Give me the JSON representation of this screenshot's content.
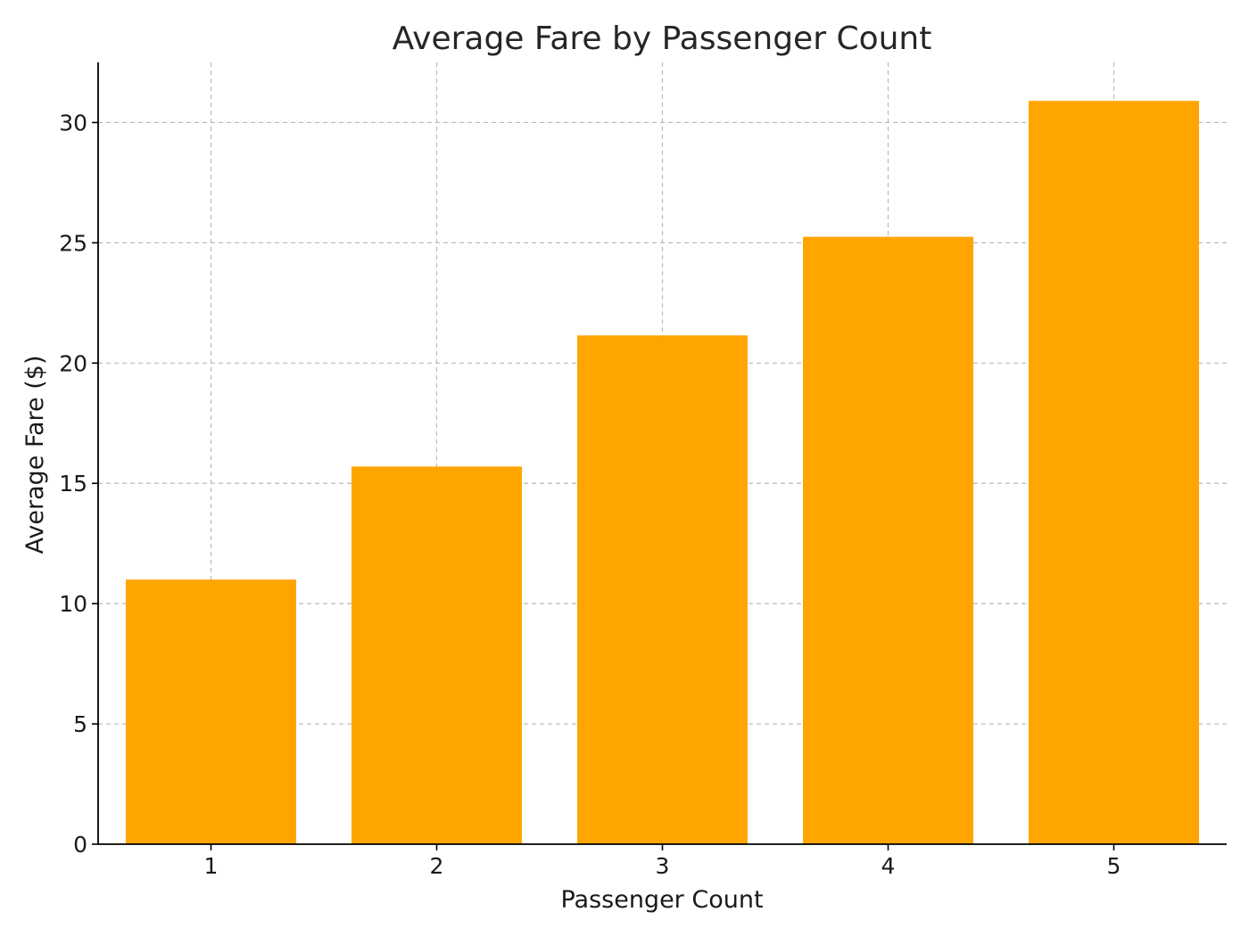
{
  "chart_data": {
    "type": "bar",
    "title": "Average Fare by Passenger Count",
    "xlabel": "Passenger Count",
    "ylabel": "Average Fare ($)",
    "categories": [
      "1",
      "2",
      "3",
      "4",
      "5"
    ],
    "values": [
      11.0,
      15.7,
      21.15,
      25.25,
      30.9
    ],
    "ylim": [
      0,
      32.5
    ],
    "yticks": [
      0,
      5,
      10,
      15,
      20,
      25,
      30
    ],
    "grid": true,
    "bar_color": "#FFA500"
  }
}
